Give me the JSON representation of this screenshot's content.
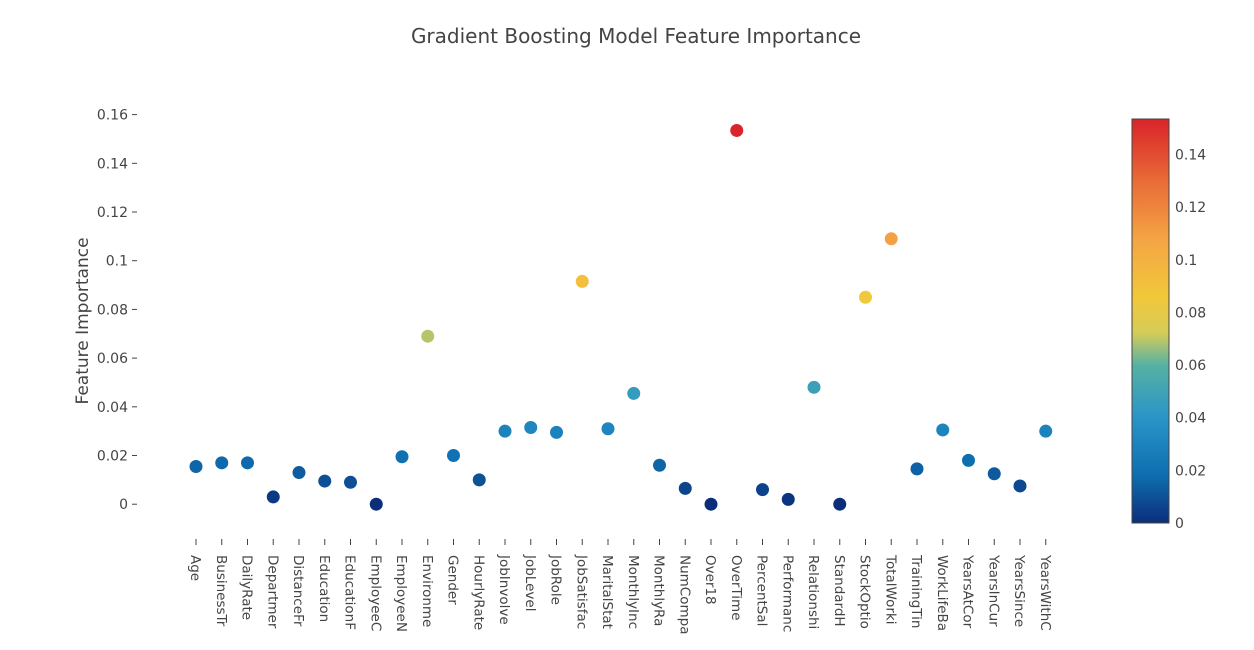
{
  "chart_data": {
    "type": "scatter",
    "title": "Gradient Boosting Model Feature Importance",
    "xlabel": "",
    "ylabel": "Feature Importance",
    "categories": [
      "Age",
      "BusinessTravel",
      "DailyRate",
      "Department",
      "DistanceFromHome",
      "Education",
      "EducationField",
      "EmployeeCount",
      "EmployeeNumber",
      "EnvironmentSatisfaction",
      "Gender",
      "HourlyRate",
      "JobInvolvement",
      "JobLevel",
      "JobRole",
      "JobSatisfaction",
      "MaritalStatus",
      "MonthlyIncome",
      "MonthlyRate",
      "NumCompaniesWorked",
      "Over18",
      "OverTime",
      "PercentSalaryHike",
      "PerformanceRating",
      "RelationshipSatisfaction",
      "StandardHours",
      "StockOptionLevel",
      "TotalWorkingYears",
      "TrainingTimesLastYear",
      "WorkLifeBalance",
      "YearsAtCompany",
      "YearsInCurrentRole",
      "YearsSinceLastPromotion",
      "YearsWithCurrManager"
    ],
    "category_labels_visible": [
      "Age",
      "BusinessTr",
      "DailyRate",
      "Departmer",
      "DistanceFr",
      "Education",
      "EducationF",
      "EmployeeC",
      "EmployeeN",
      "Environme",
      "Gender",
      "HourlyRate",
      "JobInvolve",
      "JobLevel",
      "JobRole",
      "JobSatisfac",
      "MaritalStat",
      "MonthlyInc",
      "MonthlyRa",
      "NumCompa",
      "Over18",
      "OverTime",
      "PercentSal",
      "Performanc",
      "Relationshi",
      "StandardH",
      "StockOptio",
      "TotalWorki",
      "TrainingTin",
      "WorkLifeBa",
      "YearsAtCor",
      "YearsInCur",
      "YearsSince",
      "YearsWithC"
    ],
    "values": [
      0.0155,
      0.017,
      0.017,
      0.003,
      0.013,
      0.0095,
      0.009,
      0.0,
      0.0195,
      0.069,
      0.02,
      0.01,
      0.03,
      0.0315,
      0.0295,
      0.0915,
      0.031,
      0.0455,
      0.016,
      0.0065,
      0.0,
      0.1535,
      0.006,
      0.002,
      0.048,
      0.0,
      0.085,
      0.109,
      0.0145,
      0.0305,
      0.018,
      0.0125,
      0.0075,
      0.03
    ],
    "ylim": [
      -0.011,
      0.166
    ],
    "yticks": [
      0,
      0.02,
      0.04,
      0.06,
      0.08,
      0.1,
      0.12,
      0.14,
      0.16
    ],
    "ytick_labels": [
      "0",
      "0.02",
      "0.04",
      "0.06",
      "0.08",
      "0.1",
      "0.12",
      "0.14",
      "0.16"
    ],
    "colorbar": {
      "range": [
        0,
        0.1535
      ],
      "ticks": [
        0,
        0.02,
        0.04,
        0.06,
        0.08,
        0.1,
        0.12,
        0.14
      ],
      "tick_labels": [
        "0",
        "0.02",
        "0.04",
        "0.06",
        "0.08",
        "0.1",
        "0.12",
        "0.14"
      ],
      "colorscale": [
        "#0c2e7a",
        "#0e6fb0",
        "#2a94c8",
        "#56b1a3",
        "#d4cc59",
        "#f2c83a",
        "#f4a545",
        "#e86a36",
        "#d8242a"
      ]
    },
    "grid": false,
    "legend": "none"
  }
}
